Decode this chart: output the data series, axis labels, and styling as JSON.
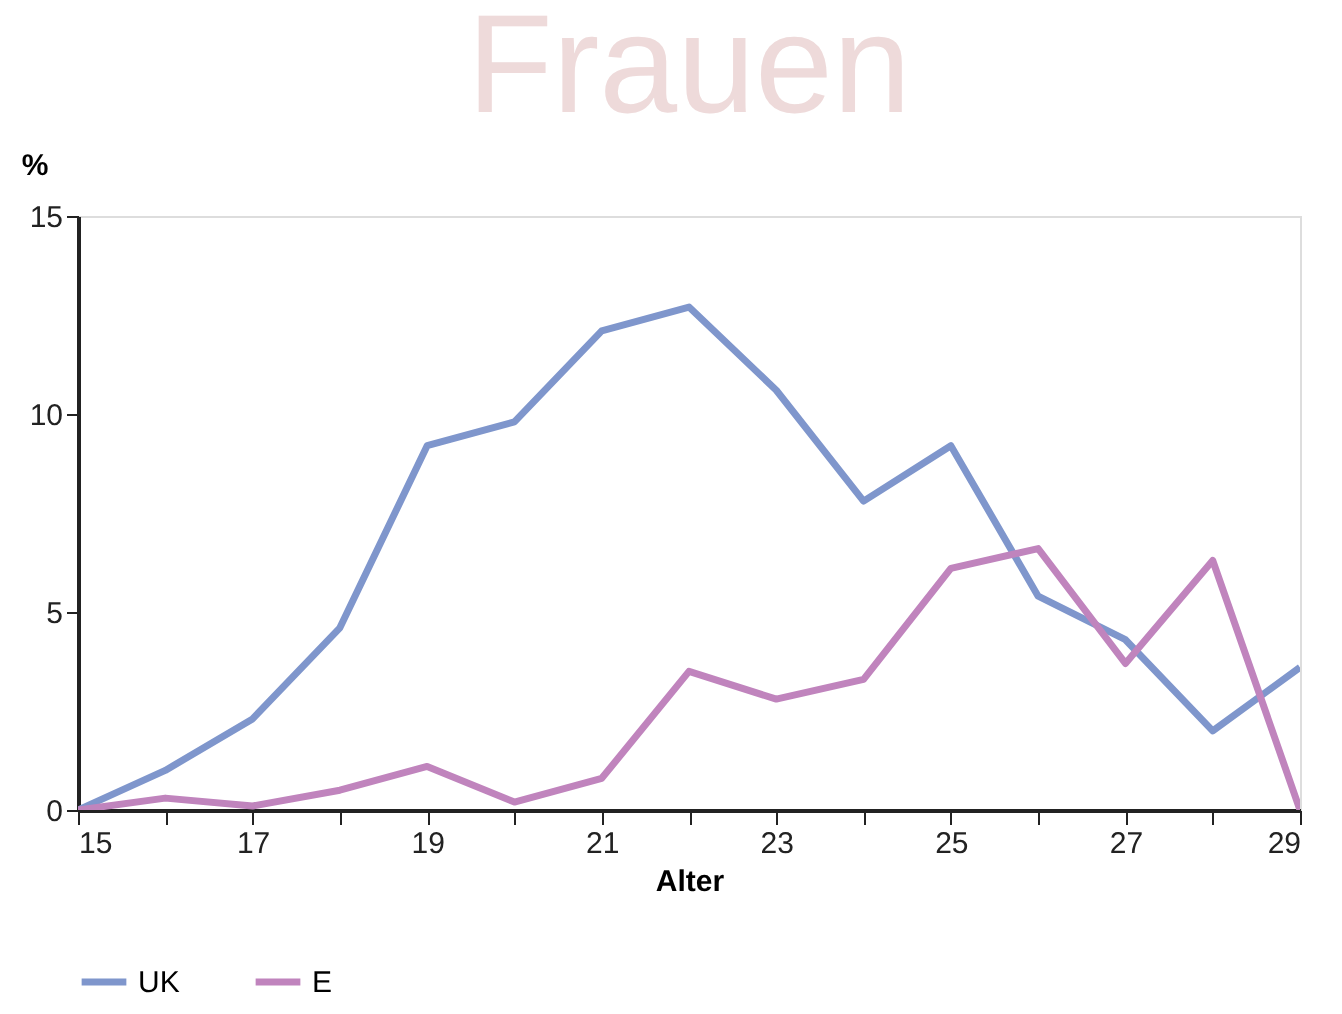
{
  "chart_data": {
    "type": "line",
    "title": "Frauen",
    "xlabel": "Alter",
    "ylabel": "%",
    "x": [
      15,
      16,
      17,
      18,
      19,
      20,
      21,
      22,
      23,
      24,
      25,
      26,
      27,
      28,
      29
    ],
    "series": [
      {
        "name": "UK",
        "color": "#7f96cc",
        "values": [
          0,
          1.0,
          2.3,
          4.6,
          9.2,
          9.8,
          12.1,
          12.7,
          10.6,
          7.8,
          9.2,
          5.4,
          4.3,
          2.0,
          3.6
        ]
      },
      {
        "name": "E",
        "color": "#c084bd",
        "values": [
          0,
          0.3,
          0.1,
          0.5,
          1.1,
          0.2,
          0.8,
          3.5,
          2.8,
          3.3,
          6.1,
          6.6,
          3.7,
          6.3,
          0
        ]
      }
    ],
    "xlim": [
      15,
      29
    ],
    "ylim": [
      0,
      15
    ],
    "xticks": [
      15,
      {
        "value": 16,
        "label": null
      },
      17,
      {
        "value": 18,
        "label": null
      },
      19,
      {
        "value": 20,
        "label": null
      },
      21,
      {
        "value": 22,
        "label": null
      },
      23,
      {
        "value": 24,
        "label": null
      },
      25,
      {
        "value": 26,
        "label": null
      },
      27,
      {
        "value": 28,
        "label": null
      },
      29
    ],
    "yticks": [
      0,
      5,
      10,
      15
    ],
    "grid": false,
    "legend": "bottom",
    "marker": "none",
    "line_style": "solid"
  }
}
